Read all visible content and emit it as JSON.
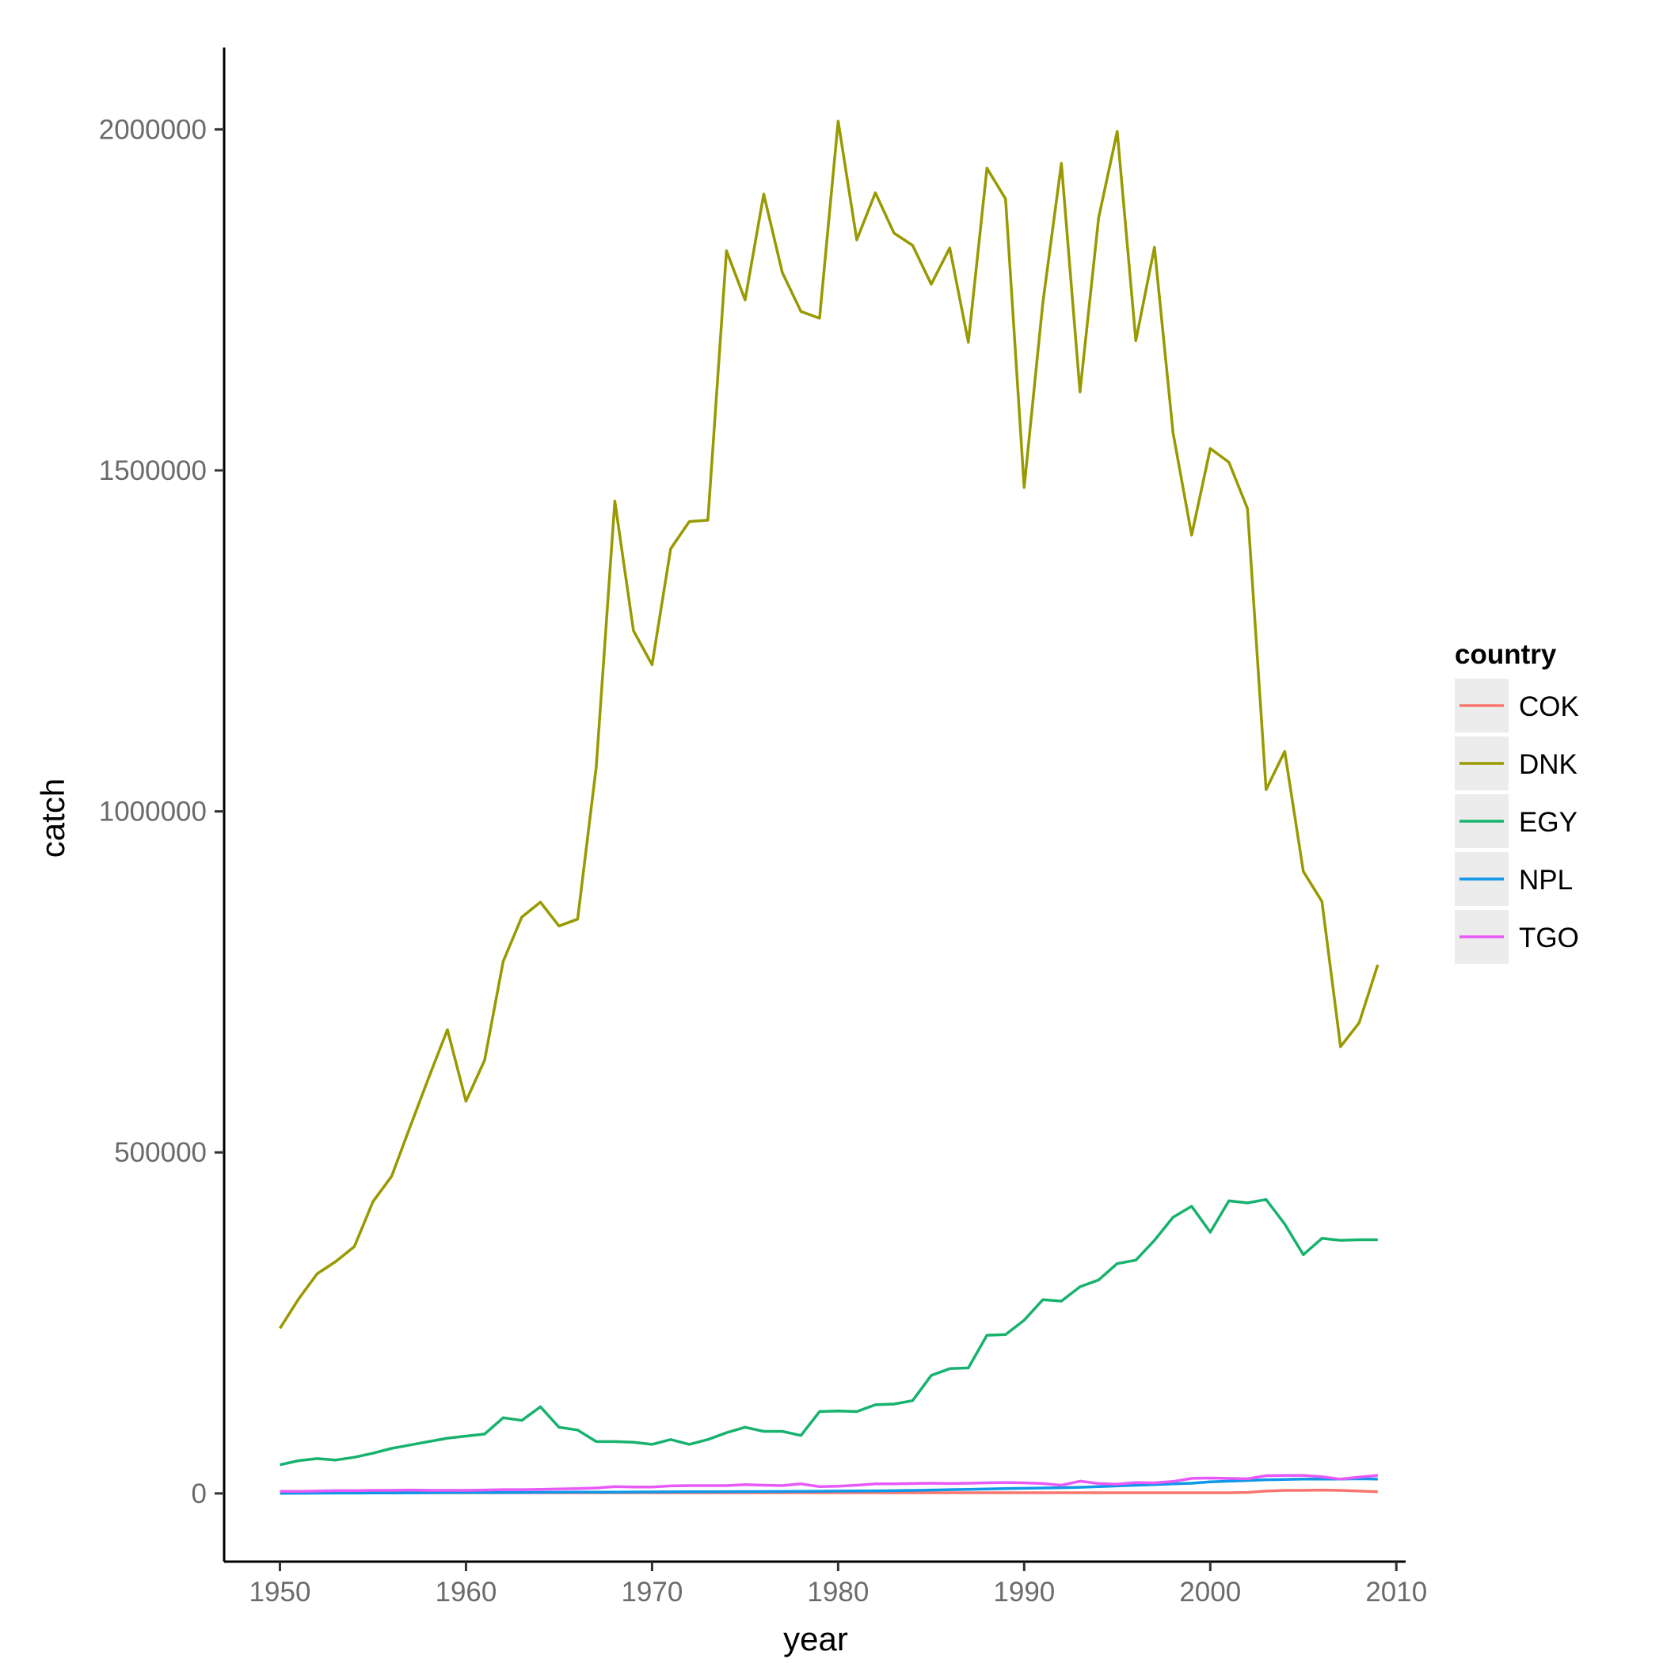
{
  "chart_data": {
    "type": "line",
    "title": "",
    "xlabel": "year",
    "ylabel": "catch",
    "xlim": [
      1947,
      2010.5
    ],
    "ylim": [
      -100000,
      2120000
    ],
    "x_ticks": [
      1950,
      1960,
      1970,
      1980,
      1990,
      2000,
      2010
    ],
    "y_ticks": [
      0,
      500000,
      1000000,
      1500000,
      2000000
    ],
    "x_tick_labels": [
      "1950",
      "1960",
      "1970",
      "1980",
      "1990",
      "2000",
      "2010"
    ],
    "y_tick_labels": [
      "0",
      "500000",
      "1000000",
      "1500000",
      "2000000"
    ],
    "grid": false,
    "legend": {
      "title": "country",
      "position": "right"
    },
    "x": [
      1950,
      1951,
      1952,
      1953,
      1954,
      1955,
      1956,
      1957,
      1958,
      1959,
      1960,
      1961,
      1962,
      1963,
      1964,
      1965,
      1966,
      1967,
      1968,
      1969,
      1970,
      1971,
      1972,
      1973,
      1974,
      1975,
      1976,
      1977,
      1978,
      1979,
      1980,
      1981,
      1982,
      1983,
      1984,
      1985,
      1986,
      1987,
      1988,
      1989,
      1990,
      1991,
      1992,
      1993,
      1994,
      1995,
      1996,
      1997,
      1998,
      1999,
      2000,
      2001,
      2002,
      2003,
      2004,
      2005,
      2006,
      2007,
      2008,
      2009
    ],
    "series": [
      {
        "name": "COK",
        "color": "#F8766D",
        "values": [
          1000,
          1000,
          1000,
          1000,
          1000,
          1000,
          1000,
          1000,
          1000,
          1000,
          1000,
          1000,
          1000,
          1000,
          1000,
          1000,
          1000,
          1000,
          1000,
          1000,
          1000,
          1000,
          1000,
          1000,
          1000,
          1000,
          1000,
          1000,
          1000,
          1000,
          1000,
          1000,
          1000,
          1000,
          1000,
          1000,
          1000,
          1000,
          1000,
          1000,
          1000,
          1000,
          1000,
          1000,
          1000,
          1000,
          1000,
          1000,
          1000,
          1000,
          1000,
          1000,
          1500,
          3500,
          4500,
          4500,
          5000,
          4500,
          3500,
          2500
        ]
      },
      {
        "name": "DNK",
        "color": "#999900",
        "values": [
          242000,
          285000,
          322000,
          340000,
          362000,
          428000,
          465000,
          538000,
          610000,
          680000,
          575000,
          635000,
          780000,
          845000,
          867000,
          832000,
          842000,
          1065000,
          1455000,
          1265000,
          1215000,
          1385000,
          1425000,
          1427000,
          1822000,
          1750000,
          1905000,
          1790000,
          1733000,
          1723000,
          2012000,
          1838000,
          1907000,
          1848000,
          1830000,
          1773000,
          1826000,
          1688000,
          1943000,
          1898000,
          1475000,
          1745000,
          1950000,
          1615000,
          1870000,
          1997000,
          1690000,
          1827000,
          1555000,
          1405000,
          1532000,
          1512000,
          1444000,
          1032000,
          1088000,
          912000,
          868000,
          655000,
          690000,
          775000
        ]
      },
      {
        "name": "EGY",
        "color": "#17B26E",
        "values": [
          42000,
          48000,
          51000,
          49000,
          53000,
          59000,
          66000,
          71000,
          76000,
          81000,
          84000,
          87000,
          111000,
          107000,
          127000,
          97000,
          93000,
          76000,
          76000,
          75000,
          72000,
          79000,
          72000,
          79000,
          89000,
          97000,
          91000,
          91000,
          85000,
          120000,
          121000,
          120000,
          130000,
          131000,
          136000,
          173000,
          183000,
          184000,
          232000,
          233000,
          254000,
          284000,
          282000,
          303000,
          313000,
          337000,
          342000,
          371000,
          405000,
          421000,
          383000,
          429000,
          426000,
          431000,
          395000,
          350000,
          374000,
          371000,
          372000,
          372000
        ]
      },
      {
        "name": "NPL",
        "color": "#0F97E8",
        "values": [
          200,
          300,
          400,
          500,
          600,
          700,
          800,
          900,
          1000,
          1100,
          1200,
          1300,
          1400,
          1500,
          1600,
          1700,
          1800,
          1900,
          2000,
          2100,
          2200,
          2300,
          2400,
          2500,
          2600,
          2700,
          2800,
          2900,
          3000,
          3200,
          3400,
          3600,
          3800,
          4000,
          4500,
          5000,
          5500,
          6000,
          6500,
          7000,
          7500,
          8000,
          8500,
          9000,
          10000,
          11000,
          12000,
          13000,
          14000,
          15000,
          17000,
          18000,
          19000,
          20000,
          20500,
          21000,
          21000,
          21000,
          21500,
          21000
        ]
      },
      {
        "name": "TGO",
        "color": "#E85AF7",
        "values": [
          3000,
          3000,
          3500,
          4000,
          4000,
          4500,
          4500,
          5000,
          4500,
          4500,
          4500,
          5000,
          5500,
          5500,
          6000,
          6500,
          7000,
          8000,
          10000,
          9500,
          9500,
          11000,
          11500,
          11500,
          11500,
          13000,
          12000,
          11500,
          14000,
          10000,
          10500,
          12000,
          14000,
          14000,
          14500,
          15000,
          14500,
          15000,
          15500,
          16000,
          15500,
          14500,
          12000,
          18000,
          14500,
          13500,
          16000,
          15500,
          17500,
          22000,
          22500,
          22000,
          21500,
          26000,
          26500,
          26500,
          24500,
          21000,
          24000,
          26500
        ]
      }
    ]
  }
}
